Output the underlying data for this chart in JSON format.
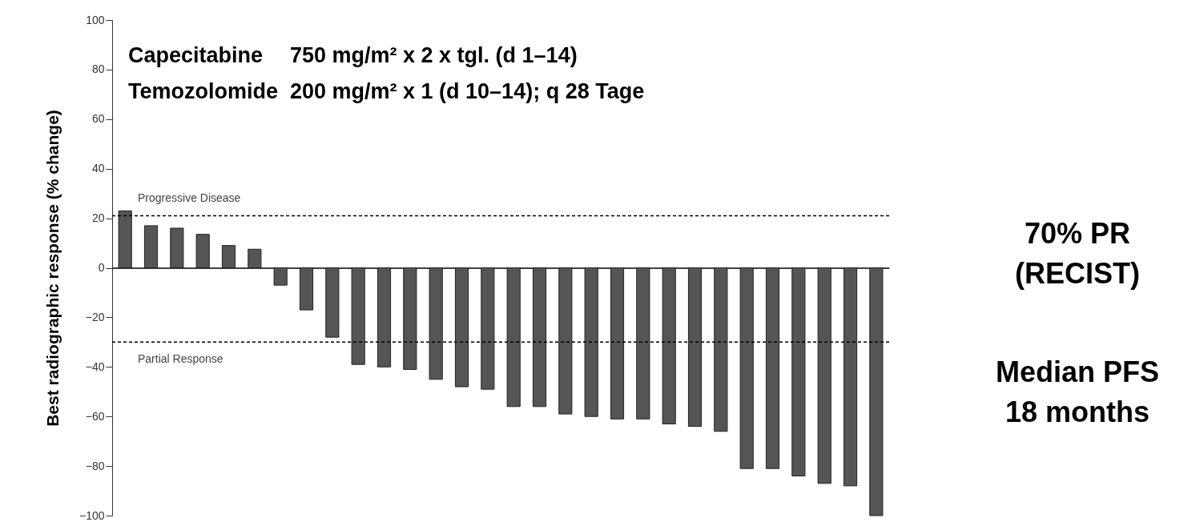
{
  "chart_data": {
    "type": "bar",
    "ylabel": "Best radiographic response (% change)",
    "categories": [
      null,
      null,
      null,
      null,
      null,
      null,
      null,
      null,
      null,
      null,
      null,
      null,
      null,
      null,
      null,
      null,
      null,
      null,
      null,
      null,
      null,
      null,
      null,
      null,
      null,
      null,
      null,
      null,
      null,
      null
    ],
    "values": [
      23,
      17,
      16,
      13.5,
      9,
      7.5,
      -7,
      -17,
      -28,
      -39,
      -40,
      -41,
      -45,
      -48,
      -49,
      -56,
      -56,
      -59,
      -60,
      -61,
      -61,
      -63,
      -64,
      -66,
      -81,
      -81,
      -84,
      -87,
      -88,
      -100
    ],
    "color": "#555555",
    "ylim": [
      -100,
      100
    ],
    "yticks": [
      -100,
      -80,
      -60,
      -40,
      -20,
      0,
      20,
      40,
      60,
      80,
      100
    ],
    "tick_labels": "y",
    "ref_lines": [
      {
        "axis": "y",
        "value": 21,
        "label": "Progressive Disease",
        "color": "#000000",
        "line_style": "dashed"
      },
      {
        "axis": "y",
        "value": -30,
        "label": "Partial Response",
        "color": "#000000",
        "line_style": "dashed"
      }
    ],
    "annotations": [
      "Capecitabine",
      "750 mg/m² x 2 x tgl. (d 1–14)",
      "Temozolomide",
      "200 mg/m² x 1 (d 10–14); q 28 Tage",
      "70% PR",
      "(RECIST)",
      "Median PFS",
      "18 months"
    ]
  }
}
